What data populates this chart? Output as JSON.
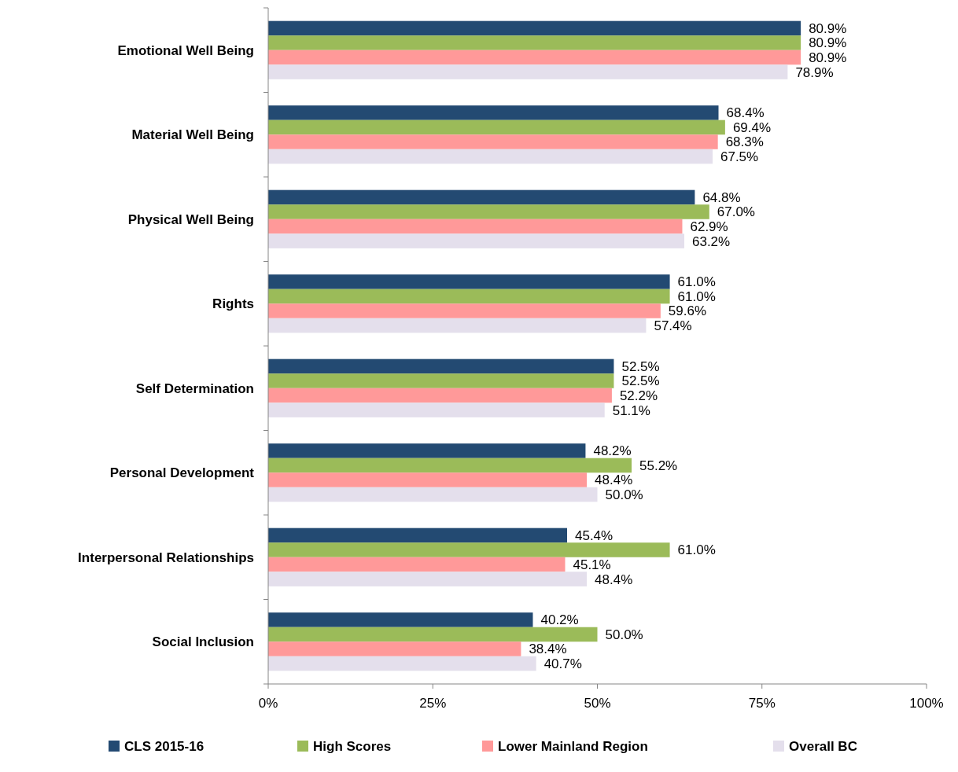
{
  "chart_data": {
    "type": "bar",
    "orientation": "horizontal",
    "categories": [
      "Emotional Well Being",
      "Material Well Being",
      "Physical Well Being",
      "Rights",
      "Self Determination",
      "Personal Development",
      "Interpersonal Relationships",
      "Social Inclusion"
    ],
    "series": [
      {
        "name": "CLS 2015-16",
        "color": "#234a72",
        "values": [
          80.9,
          68.4,
          64.8,
          61.0,
          52.5,
          48.2,
          45.4,
          40.2
        ],
        "value_labels": [
          "80.9%",
          "68.4%",
          "64.8%",
          "61.0%",
          "52.5%",
          "48.2%",
          "45.4%",
          "40.2%"
        ]
      },
      {
        "name": "High Scores",
        "color": "#9bbb59",
        "values": [
          80.9,
          69.4,
          67.0,
          61.0,
          52.5,
          55.2,
          61.0,
          50.0
        ],
        "value_labels": [
          "80.9%",
          "69.4%",
          "67.0%",
          "61.0%",
          "52.5%",
          "55.2%",
          "61.0%",
          "50.0%"
        ]
      },
      {
        "name": "Lower Mainland Region",
        "color": "#ff9999",
        "values": [
          80.9,
          68.3,
          62.9,
          59.6,
          52.2,
          48.4,
          45.1,
          38.4
        ],
        "value_labels": [
          "80.9%",
          "68.3%",
          "62.9%",
          "59.6%",
          "52.2%",
          "48.4%",
          "45.1%",
          "38.4%"
        ]
      },
      {
        "name": "Overall BC",
        "color": "#e4dfec",
        "values": [
          78.9,
          67.5,
          63.2,
          57.4,
          51.1,
          50.0,
          48.4,
          40.7
        ],
        "value_labels": [
          "78.9%",
          "67.5%",
          "63.2%",
          "57.4%",
          "51.1%",
          "50.0%",
          "48.4%",
          "40.7%"
        ]
      }
    ],
    "xlim": [
      0,
      100
    ],
    "xticks": [
      {
        "value": 0,
        "label": "0%"
      },
      {
        "value": 25,
        "label": "25%"
      },
      {
        "value": 50,
        "label": "50%"
      },
      {
        "value": 75,
        "label": "75%"
      },
      {
        "value": 100,
        "label": "100%"
      }
    ],
    "grid": false,
    "legend": "bottom"
  }
}
